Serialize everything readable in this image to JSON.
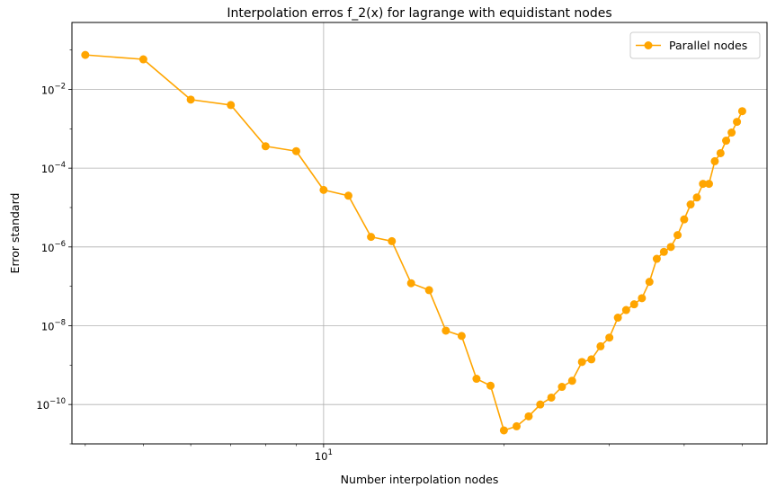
{
  "chart_data": {
    "type": "line",
    "title": "Interpolation erros f_2(x) for lagrange with equidistant nodes",
    "xlabel": "Number interpolation nodes",
    "ylabel": "Error standard",
    "xscale": "log",
    "yscale": "log",
    "xlim": [
      3.8,
      55
    ],
    "ylim": [
      1e-11,
      0.5
    ],
    "grid": true,
    "legend_position": "top-right",
    "x_tick_labels": [
      {
        "value": 10,
        "base": "10",
        "exp": "1"
      }
    ],
    "y_tick_labels": [
      {
        "value": 0.01,
        "base": "10",
        "exp": "−2"
      },
      {
        "value": 0.0001,
        "base": "10",
        "exp": "−4"
      },
      {
        "value": 1e-06,
        "base": "10",
        "exp": "−6"
      },
      {
        "value": 1e-08,
        "base": "10",
        "exp": "−8"
      },
      {
        "value": 1e-10,
        "base": "10",
        "exp": "−10"
      }
    ],
    "color": "#ffa500",
    "series": [
      {
        "name": "Parallel nodes",
        "x": [
          4,
          5,
          6,
          7,
          8,
          9,
          10,
          11,
          12,
          13,
          14,
          15,
          16,
          17,
          18,
          19,
          20,
          21,
          22,
          23,
          24,
          25,
          26,
          27,
          28,
          29,
          30,
          31,
          32,
          33,
          34,
          35,
          36,
          37,
          38,
          39,
          40,
          41,
          42,
          43,
          44,
          45,
          46,
          47,
          48,
          49,
          50
        ],
        "y": [
          0.075,
          0.058,
          0.0055,
          0.004,
          0.00036,
          0.00027,
          2.8e-05,
          2e-05,
          1.8e-06,
          1.4e-06,
          1.2e-07,
          8e-08,
          7.5e-09,
          5.5e-09,
          4.5e-10,
          3e-10,
          2.2e-11,
          2.8e-11,
          5e-11,
          1e-10,
          1.5e-10,
          2.8e-10,
          4e-10,
          1.2e-09,
          1.4e-09,
          3e-09,
          5e-09,
          1.6e-08,
          2.5e-08,
          3.5e-08,
          5e-08,
          1.3e-07,
          5e-07,
          7.5e-07,
          1e-06,
          2e-06,
          5e-06,
          1.2e-05,
          1.8e-05,
          4e-05,
          4e-05,
          0.00015,
          0.00024,
          0.0005,
          0.0008,
          0.0015,
          0.0028
        ]
      }
    ]
  }
}
